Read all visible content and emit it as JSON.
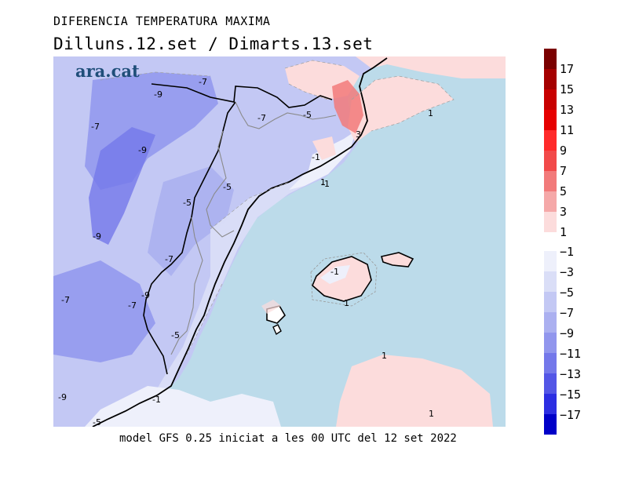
{
  "header": {
    "title": "DIFERENCIA TEMPERATURA MAXIMA",
    "subtitle": "Dilluns.12.set / Dimarts.13.set"
  },
  "brand": {
    "logo_text": "ara.cat",
    "logo_color": "#1f4e79"
  },
  "footer": {
    "caption": "model GFS 0.25 iniciat a les 00 UTC del 12 set 2022"
  },
  "legend": {
    "warm": [
      {
        "label": "17",
        "color": "#7a0000"
      },
      {
        "label": "15",
        "color": "#a50000"
      },
      {
        "label": "13",
        "color": "#c80000"
      },
      {
        "label": "11",
        "color": "#e60000"
      },
      {
        "label": "9",
        "color": "#ff2a2a"
      },
      {
        "label": "7",
        "color": "#f24a4a"
      },
      {
        "label": "5",
        "color": "#f27a7a"
      },
      {
        "label": "3",
        "color": "#f5a8a8"
      },
      {
        "label": "1",
        "color": "#fcdcdc"
      }
    ],
    "cold": [
      {
        "label": "−1",
        "color": "#eef0fb"
      },
      {
        "label": "−3",
        "color": "#dadef7"
      },
      {
        "label": "−5",
        "color": "#c3c8f4"
      },
      {
        "label": "−7",
        "color": "#abb0f0"
      },
      {
        "label": "−9",
        "color": "#9196ed"
      },
      {
        "label": "−11",
        "color": "#7478ea"
      },
      {
        "label": "−13",
        "color": "#5356e6"
      },
      {
        "label": "−15",
        "color": "#2c2ee2"
      },
      {
        "label": "−17",
        "color": "#0000c8"
      }
    ]
  },
  "map": {
    "sea_color": "#bcdbea",
    "contour_labels": [
      "-9",
      "-7",
      "-7",
      "-5",
      "-7",
      "-9",
      "-5",
      "-1",
      "-5",
      "-1",
      "1",
      "3",
      "1",
      "-9",
      "-7",
      "-1",
      "-7",
      "-9",
      "1",
      "-7",
      "-5",
      "1",
      "1",
      "-9",
      "-1",
      "-5"
    ]
  }
}
